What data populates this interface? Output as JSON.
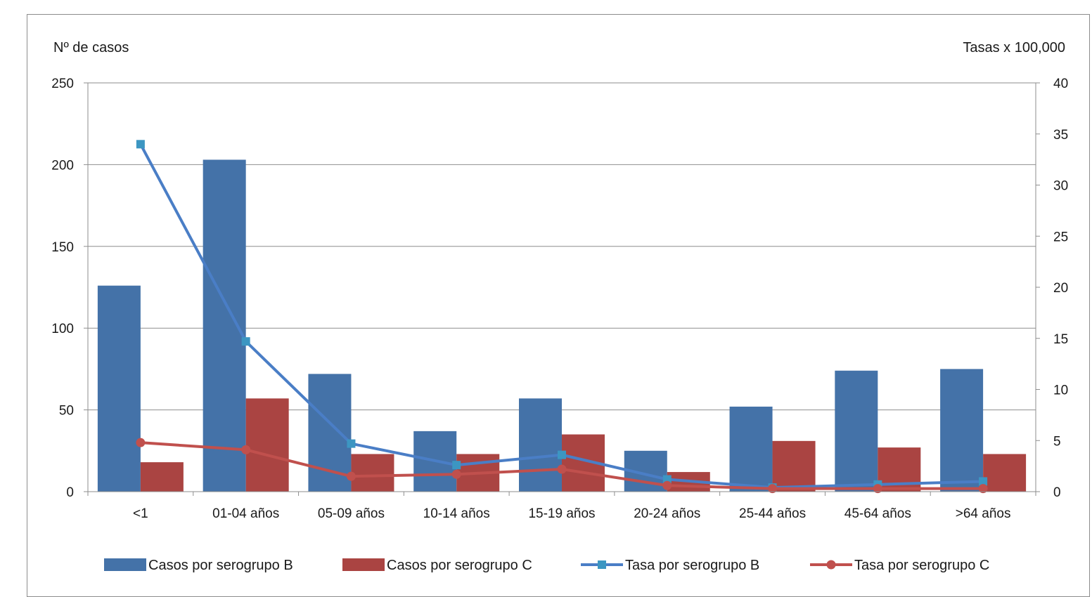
{
  "chart_data": {
    "type": "bar",
    "categories": [
      "<1",
      "01-04 años",
      "05-09 años",
      "10-14 años",
      "15-19 años",
      "20-24 años",
      "25-44 años",
      "45-64 años",
      ">64 años"
    ],
    "series": [
      {
        "name": "Casos por serogrupo B",
        "type": "bar",
        "axis": "left",
        "color": "#4472a8",
        "values": [
          126,
          203,
          72,
          37,
          57,
          25,
          52,
          74,
          75
        ]
      },
      {
        "name": "Casos por serogrupo C",
        "type": "bar",
        "axis": "left",
        "color": "#aa4442",
        "values": [
          18,
          57,
          23,
          23,
          35,
          12,
          31,
          27,
          23
        ]
      },
      {
        "name": "Tasa por serogrupo B",
        "type": "line",
        "axis": "right",
        "color": "#4a7ec6",
        "marker": "square",
        "marker_color": "#3c96c2",
        "values": [
          34,
          14.7,
          4.7,
          2.6,
          3.6,
          1.2,
          0.4,
          0.7,
          1.0
        ]
      },
      {
        "name": "Tasa por serogrupo C",
        "type": "line",
        "axis": "right",
        "color": "#c0504d",
        "marker": "circle",
        "marker_color": "#c0504d",
        "values": [
          4.8,
          4.1,
          1.5,
          1.7,
          2.2,
          0.6,
          0.3,
          0.3,
          0.3
        ]
      }
    ],
    "ylabel_left": "Nº de casos",
    "ylabel_right": "Tasas x 100,000",
    "ylim_left": [
      0,
      250
    ],
    "ylim_right": [
      0,
      40
    ],
    "yticks_left": [
      0,
      50,
      100,
      150,
      200,
      250
    ],
    "yticks_right": [
      0,
      5,
      10,
      15,
      20,
      25,
      30,
      35,
      40
    ],
    "grid": true,
    "legend": "bottom"
  }
}
